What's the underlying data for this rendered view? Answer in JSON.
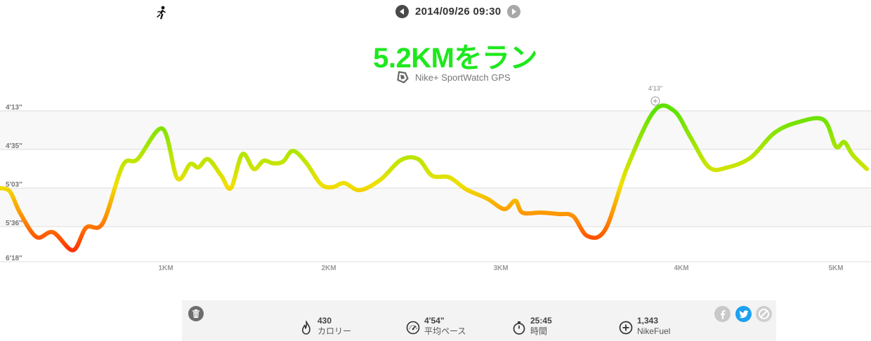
{
  "header": {
    "datetime": "2014/09/26 09:30",
    "prev_icon": "triangle-left-icon",
    "next_icon": "triangle-right-icon",
    "activity_icon": "runner-icon"
  },
  "title": "5.2KMをラン",
  "device": {
    "name": "Nike+ SportWatch GPS",
    "icon": "sportwatch-icon"
  },
  "colors": {
    "title": "#1ee81e",
    "slow": "#ff1a00",
    "mid": "#f0e000",
    "fast": "#6ee600",
    "twitter": "#1da1f2"
  },
  "chart_data": {
    "type": "line",
    "metric": "pace",
    "y_ticks": [
      "4'13\"",
      "4'35\"",
      "5'03\"",
      "5'36\"",
      "6'18\""
    ],
    "x_ticks": [
      "1KM",
      "2KM",
      "3KM",
      "4KM",
      "5KM"
    ],
    "marker_label": "4'13\"",
    "x_range_km": [
      0,
      5.25
    ],
    "series": [
      {
        "values": [
          [
            0.0,
            5.05
          ],
          [
            0.06,
            5.1
          ],
          [
            0.12,
            5.4
          ],
          [
            0.22,
            5.82
          ],
          [
            0.32,
            5.72
          ],
          [
            0.44,
            6.1
          ],
          [
            0.52,
            5.62
          ],
          [
            0.62,
            5.55
          ],
          [
            0.74,
            4.78
          ],
          [
            0.83,
            4.7
          ],
          [
            0.98,
            4.35
          ],
          [
            1.07,
            4.93
          ],
          [
            1.15,
            4.76
          ],
          [
            1.2,
            4.8
          ],
          [
            1.26,
            4.7
          ],
          [
            1.34,
            4.9
          ],
          [
            1.4,
            5.05
          ],
          [
            1.47,
            4.64
          ],
          [
            1.54,
            4.82
          ],
          [
            1.6,
            4.72
          ],
          [
            1.66,
            4.75
          ],
          [
            1.72,
            4.73
          ],
          [
            1.78,
            4.6
          ],
          [
            1.86,
            4.74
          ],
          [
            1.95,
            5.0
          ],
          [
            2.02,
            5.04
          ],
          [
            2.09,
            4.99
          ],
          [
            2.18,
            5.08
          ],
          [
            2.3,
            4.95
          ],
          [
            2.42,
            4.71
          ],
          [
            2.52,
            4.7
          ],
          [
            2.6,
            4.9
          ],
          [
            2.7,
            4.92
          ],
          [
            2.8,
            5.07
          ],
          [
            2.92,
            5.2
          ],
          [
            3.02,
            5.35
          ],
          [
            3.08,
            5.23
          ],
          [
            3.12,
            5.4
          ],
          [
            3.22,
            5.4
          ],
          [
            3.32,
            5.42
          ],
          [
            3.4,
            5.45
          ],
          [
            3.48,
            5.8
          ],
          [
            3.58,
            5.65
          ],
          [
            3.7,
            4.8
          ],
          [
            3.85,
            4.15
          ],
          [
            3.96,
            4.15
          ],
          [
            4.06,
            4.45
          ],
          [
            4.18,
            4.8
          ],
          [
            4.3,
            4.8
          ],
          [
            4.45,
            4.68
          ],
          [
            4.6,
            4.4
          ],
          [
            4.75,
            4.28
          ],
          [
            4.92,
            4.25
          ],
          [
            5.0,
            4.55
          ],
          [
            5.06,
            4.5
          ],
          [
            5.12,
            4.65
          ],
          [
            5.22,
            4.82
          ]
        ]
      }
    ]
  },
  "toolbar": {
    "delete_icon": "trash-icon"
  },
  "stats": [
    {
      "value": "430",
      "label": "カロリー",
      "icon": "flame-icon"
    },
    {
      "value": "4'54\"",
      "label": "平均ペース",
      "icon": "speedometer-icon"
    },
    {
      "value": "25:45",
      "label": "時間",
      "icon": "stopwatch-icon"
    },
    {
      "value": "1,343",
      "label": "NikeFuel",
      "icon": "fuel-plus-icon"
    }
  ],
  "share": [
    {
      "name": "facebook",
      "icon": "facebook-icon"
    },
    {
      "name": "twitter",
      "icon": "twitter-icon"
    },
    {
      "name": "privacy",
      "icon": "block-icon"
    }
  ]
}
